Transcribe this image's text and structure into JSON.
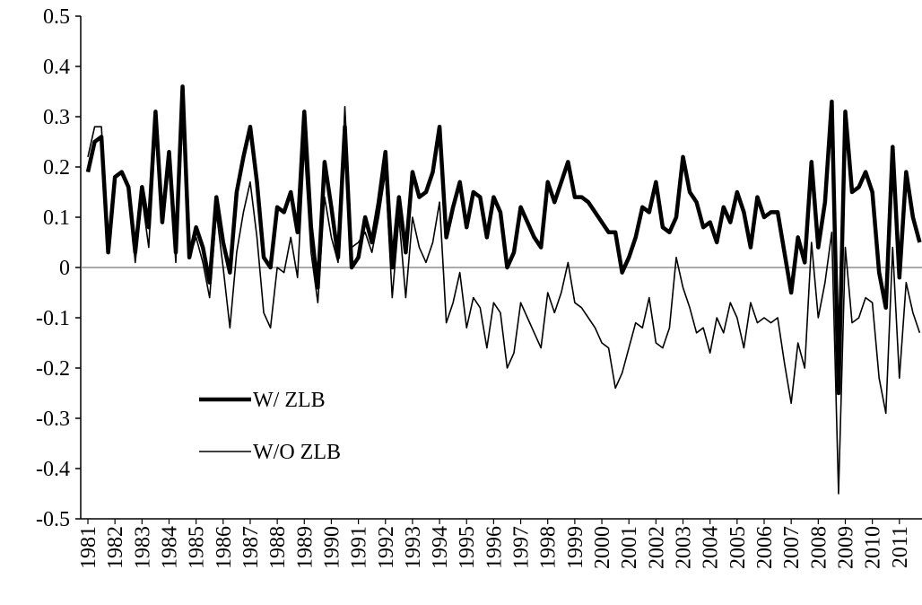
{
  "chart_data": {
    "type": "line",
    "categories": [
      "1981",
      null,
      null,
      null,
      "1982",
      null,
      null,
      null,
      "1983",
      null,
      null,
      null,
      "1984",
      null,
      null,
      null,
      "1985",
      null,
      null,
      null,
      "1986",
      null,
      null,
      null,
      "1987",
      null,
      null,
      null,
      "1988",
      null,
      null,
      null,
      "1989",
      null,
      null,
      null,
      "1990",
      null,
      null,
      null,
      "1991",
      null,
      null,
      null,
      "1992",
      null,
      null,
      null,
      "1993",
      null,
      null,
      null,
      "1994",
      null,
      null,
      null,
      "1995",
      null,
      null,
      null,
      "1996",
      null,
      null,
      null,
      "1997",
      null,
      null,
      null,
      "1998",
      null,
      null,
      null,
      "1999",
      null,
      null,
      null,
      "2000",
      null,
      null,
      null,
      "2001",
      null,
      null,
      null,
      "2002",
      null,
      null,
      null,
      "2003",
      null,
      null,
      null,
      "2004",
      null,
      null,
      null,
      "2005",
      null,
      null,
      null,
      "2006",
      null,
      null,
      null,
      "2007",
      null,
      null,
      null,
      "2008",
      null,
      null,
      null,
      "2009",
      null,
      null,
      null,
      "2010",
      null,
      null,
      null,
      "2011",
      null,
      null,
      null
    ],
    "series": [
      {
        "name": "W/ ZLB",
        "color": "#000000",
        "values": [
          0.19,
          0.25,
          0.26,
          0.03,
          0.18,
          0.19,
          0.16,
          0.03,
          0.16,
          0.08,
          0.31,
          0.09,
          0.23,
          0.03,
          0.36,
          0.02,
          0.08,
          0.04,
          -0.03,
          0.14,
          0.05,
          -0.01,
          0.15,
          0.22,
          0.28,
          0.17,
          0.02,
          0.0,
          0.12,
          0.11,
          0.15,
          0.07,
          0.31,
          0.08,
          -0.04,
          0.21,
          0.12,
          0.02,
          0.28,
          0.0,
          0.02,
          0.1,
          0.05,
          0.13,
          0.23,
          0.0,
          0.14,
          0.03,
          0.19,
          0.14,
          0.15,
          0.19,
          0.28,
          0.06,
          0.12,
          0.17,
          0.08,
          0.15,
          0.14,
          0.06,
          0.14,
          0.11,
          0.0,
          0.03,
          0.12,
          0.09,
          0.06,
          0.04,
          0.17,
          0.13,
          0.17,
          0.21,
          0.14,
          0.14,
          0.13,
          0.11,
          0.09,
          0.07,
          0.07,
          -0.01,
          0.02,
          0.06,
          0.12,
          0.11,
          0.17,
          0.08,
          0.07,
          0.1,
          0.22,
          0.15,
          0.13,
          0.08,
          0.09,
          0.05,
          0.12,
          0.09,
          0.15,
          0.11,
          0.04,
          0.14,
          0.1,
          0.11,
          0.11,
          0.03,
          -0.05,
          0.06,
          0.01,
          0.21,
          0.04,
          0.13,
          0.33,
          -0.25,
          0.31,
          0.15,
          0.16,
          0.19,
          0.15,
          -0.01,
          -0.08,
          0.24,
          -0.02,
          0.19,
          0.1,
          0.05
        ]
      },
      {
        "name": "W/O ZLB",
        "color": "#000000",
        "values": [
          0.22,
          0.28,
          0.28,
          0.05,
          0.18,
          0.19,
          0.16,
          0.01,
          0.14,
          0.04,
          0.29,
          0.09,
          0.21,
          0.01,
          0.33,
          0.02,
          0.06,
          0.01,
          -0.06,
          0.11,
          0.0,
          -0.12,
          0.03,
          0.11,
          0.17,
          0.06,
          -0.09,
          -0.12,
          0.0,
          -0.01,
          0.06,
          -0.02,
          0.24,
          0.03,
          -0.07,
          0.14,
          0.06,
          0.01,
          0.32,
          0.04,
          0.05,
          0.07,
          0.03,
          0.1,
          0.19,
          -0.06,
          0.1,
          -0.06,
          0.1,
          0.04,
          0.01,
          0.05,
          0.13,
          -0.11,
          -0.07,
          -0.01,
          -0.12,
          -0.06,
          -0.08,
          -0.16,
          -0.07,
          -0.09,
          -0.2,
          -0.17,
          -0.07,
          -0.1,
          -0.13,
          -0.16,
          -0.05,
          -0.09,
          -0.05,
          0.01,
          -0.07,
          -0.08,
          -0.1,
          -0.12,
          -0.15,
          -0.16,
          -0.24,
          -0.21,
          -0.16,
          -0.11,
          -0.12,
          -0.06,
          -0.15,
          -0.16,
          -0.12,
          0.02,
          -0.04,
          -0.08,
          -0.13,
          -0.12,
          -0.17,
          -0.1,
          -0.13,
          -0.07,
          -0.1,
          -0.16,
          -0.07,
          -0.11,
          -0.1,
          -0.11,
          -0.1,
          -0.19,
          -0.27,
          -0.15,
          -0.2,
          0.05,
          -0.1,
          -0.03,
          0.07,
          -0.45,
          0.04,
          -0.11,
          -0.1,
          -0.06,
          -0.07,
          -0.22,
          -0.29,
          0.04,
          -0.22,
          -0.03,
          -0.09,
          -0.13
        ]
      }
    ],
    "ylim": [
      -0.5,
      0.5
    ],
    "yticks": [
      -0.5,
      -0.4,
      -0.3,
      -0.2,
      -0.1,
      0,
      0.1,
      0.2,
      0.3,
      0.4,
      0.5
    ]
  }
}
